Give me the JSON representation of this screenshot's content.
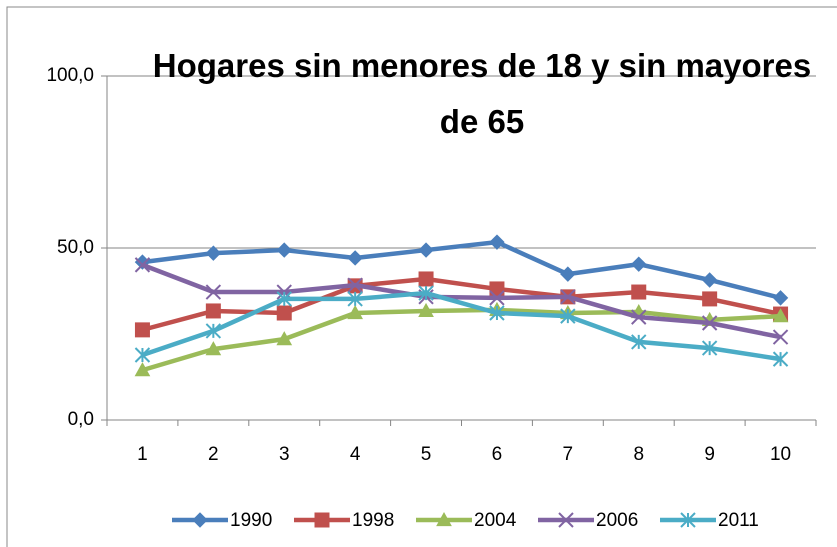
{
  "chart_data": {
    "type": "line",
    "title": "Hogares sin menores de 18 y sin mayores de 65",
    "categories": [
      "1",
      "2",
      "3",
      "4",
      "5",
      "6",
      "7",
      "8",
      "9",
      "10"
    ],
    "series": [
      {
        "name": "1990",
        "color": "#4a7ebb",
        "marker": "diamond",
        "values": [
          45.9,
          48.5,
          49.4,
          47.1,
          49.4,
          51.7,
          42.4,
          45.3,
          40.7,
          35.5
        ]
      },
      {
        "name": "1998",
        "color": "#c0504d",
        "marker": "square",
        "values": [
          26.2,
          31.7,
          31.1,
          39.0,
          41.0,
          38.1,
          35.8,
          37.2,
          35.2,
          30.8
        ]
      },
      {
        "name": "2004",
        "color": "#9bbb59",
        "marker": "triangle",
        "values": [
          14.5,
          20.6,
          23.5,
          31.1,
          31.7,
          32.0,
          31.1,
          31.4,
          29.1,
          30.2
        ]
      },
      {
        "name": "2006",
        "color": "#8064a2",
        "marker": "x",
        "values": [
          45.1,
          37.2,
          37.2,
          39.2,
          35.8,
          35.5,
          35.8,
          29.9,
          28.2,
          24.1
        ]
      },
      {
        "name": "2011",
        "color": "#4bacc6",
        "marker": "star",
        "values": [
          18.9,
          25.9,
          35.2,
          35.2,
          36.9,
          31.1,
          30.2,
          22.7,
          20.9,
          17.7
        ]
      }
    ],
    "ylim": [
      0,
      100
    ],
    "yticks": [
      {
        "value": 0,
        "label": "0,0"
      },
      {
        "value": 50,
        "label": "50,0"
      },
      {
        "value": 100,
        "label": "100,0"
      }
    ],
    "grid": true,
    "legend": "bottom"
  }
}
